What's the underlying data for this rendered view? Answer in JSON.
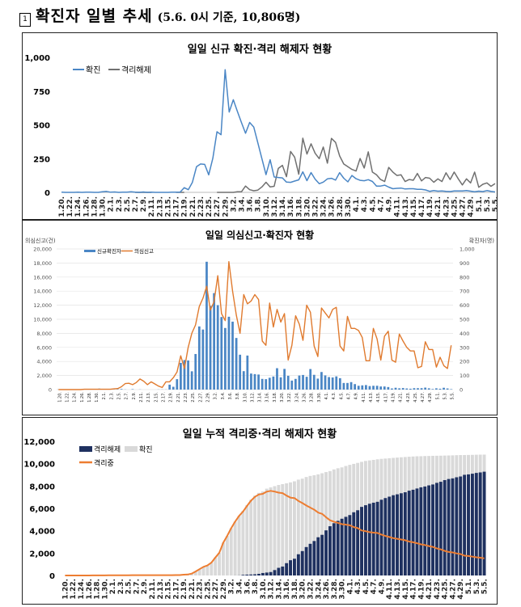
{
  "header": {
    "marker": "1",
    "title": "확진자 일별 추세",
    "subtitle": "(5.6. 0시 기준, 10,806명)"
  },
  "colors": {
    "confirmed_blue": "#4a86c5",
    "released_gray": "#707070",
    "reports_orange": "#e07a2e",
    "cum_released_navy": "#1f3160",
    "cum_confirmed_gray": "#d9d9d9",
    "isolating_orange": "#ed7d31"
  },
  "dates": [
    "1.20",
    "1.21",
    "1.22",
    "1.23",
    "1.24",
    "1.25",
    "1.26",
    "1.27",
    "1.28",
    "1.29",
    "1.30",
    "1.31",
    "2.1",
    "2.2",
    "2.3",
    "2.4",
    "2.5",
    "2.6",
    "2.7",
    "2.8",
    "2.9",
    "2.10",
    "2.11",
    "2.12",
    "2.13",
    "2.14",
    "2.15",
    "2.16",
    "2.17",
    "2.18",
    "2.19",
    "2.20",
    "2.21",
    "2.22",
    "2.23",
    "2.24",
    "2.25",
    "2.26",
    "2.27",
    "2.28",
    "2.29",
    "3.1",
    "3.2",
    "3.3",
    "3.4",
    "3.5",
    "3.6",
    "3.7",
    "3.8",
    "3.9",
    "3.10",
    "3.11",
    "3.12",
    "3.13",
    "3.14",
    "3.15",
    "3.16",
    "3.17",
    "3.18",
    "3.19",
    "3.20",
    "3.21",
    "3.22",
    "3.23",
    "3.24",
    "3.25",
    "3.26",
    "3.27",
    "3.28",
    "3.29",
    "3.30",
    "3.31",
    "4.1",
    "4.2",
    "4.3",
    "4.4",
    "4.5",
    "4.6",
    "4.7",
    "4.8",
    "4.9",
    "4.10",
    "4.11",
    "4.12",
    "4.13",
    "4.14",
    "4.15",
    "4.16",
    "4.17",
    "4.18",
    "4.19",
    "4.20",
    "4.21",
    "4.22",
    "4.23",
    "4.24",
    "4.25",
    "4.26",
    "4.27",
    "4.28",
    "4.29",
    "4.30",
    "5.1",
    "5.2",
    "5.3",
    "5.4",
    "5.5"
  ],
  "chart_data": [
    {
      "type": "line",
      "title": "일일 신규 확진·격리 해제자 현황",
      "ylim": [
        0,
        1000
      ],
      "yticks": [
        "0",
        "250",
        "500",
        "750",
        "1,000"
      ],
      "legend": "top-left",
      "grid": false,
      "series": [
        {
          "name": "확진",
          "values": [
            1,
            0,
            0,
            0,
            1,
            0,
            1,
            1,
            0,
            0,
            4,
            7,
            1,
            3,
            0,
            1,
            2,
            4,
            1,
            0,
            3,
            0,
            1,
            0,
            0,
            0,
            0,
            1,
            1,
            1,
            35,
            20,
            74,
            190,
            210,
            207,
            130,
            253,
            449,
            427,
            909,
            595,
            686,
            600,
            516,
            438,
            518,
            483,
            367,
            248,
            131,
            242,
            114,
            110,
            107,
            76,
            74,
            84,
            93,
            152,
            87,
            147,
            98,
            64,
            76,
            100,
            104,
            91,
            146,
            105,
            78,
            125,
            101,
            89,
            86,
            94,
            81,
            47,
            47,
            53,
            39,
            27,
            30,
            32,
            25,
            27,
            27,
            22,
            22,
            18,
            8,
            13,
            9,
            11,
            8,
            6,
            10,
            10,
            10,
            14,
            9,
            4,
            9,
            6,
            13,
            8,
            3
          ]
        },
        {
          "name": "격리해제",
          "values": [
            null,
            null,
            null,
            null,
            null,
            null,
            null,
            null,
            null,
            null,
            null,
            null,
            null,
            null,
            null,
            null,
            null,
            null,
            0,
            0,
            0,
            0,
            0,
            null,
            null,
            null,
            null,
            null,
            0,
            0,
            0,
            null,
            null,
            null,
            null,
            null,
            null,
            null,
            0,
            0,
            0,
            0,
            0,
            4,
            5,
            47,
            20,
            12,
            17,
            41,
            75,
            41,
            45,
            177,
            200,
            116,
            303,
            261,
            134,
            401,
            284,
            360,
            290,
            250,
            336,
            216,
            400,
            370,
            270,
            210,
            190,
            170,
            158,
            251,
            180,
            300,
            150,
            130,
            95,
            80,
            185,
            150,
            125,
            130,
            80,
            95,
            90,
            140,
            85,
            110,
            105,
            75,
            100,
            80,
            145,
            95,
            150,
            100,
            55,
            100,
            70,
            150,
            38,
            60,
            70,
            45,
            65
          ]
        }
      ]
    },
    {
      "type": "bar+line",
      "title": "일일 의심신고·확진자 현황",
      "ylabel_left": "의심신고(건)",
      "ylabel_right": "확진자(명)",
      "ylim_left": [
        0,
        20000
      ],
      "ylim_right": [
        0,
        1000
      ],
      "yticks_left": [
        "0",
        "2,000",
        "4,000",
        "6,000",
        "8,000",
        "10,000",
        "12,000",
        "14,000",
        "16,000",
        "18,000",
        "20,000"
      ],
      "yticks_right": [
        "0",
        "100",
        "200",
        "300",
        "400",
        "500",
        "600",
        "700",
        "800",
        "900",
        "1,000"
      ],
      "legend": "top-left",
      "grid": true,
      "series": [
        {
          "name": "신규확진자",
          "axis": "right",
          "type": "bar",
          "values_from": "chart_data.0.series.0.values"
        },
        {
          "name": "의심신고",
          "axis": "left",
          "type": "line",
          "values": [
            0,
            0,
            0,
            0,
            0,
            0,
            0,
            50,
            50,
            50,
            50,
            50,
            50,
            50,
            50,
            100,
            150,
            400,
            850,
            900,
            700,
            1000,
            1500,
            1200,
            700,
            1100,
            800,
            500,
            300,
            1100,
            1100,
            1700,
            2500,
            4800,
            3000,
            6000,
            8000,
            9200,
            11800,
            13000,
            14700,
            11300,
            12500,
            16200,
            10800,
            9800,
            18200,
            14000,
            10600,
            8000,
            13500,
            12200,
            12600,
            13500,
            12800,
            6900,
            6300,
            12300,
            8900,
            11400,
            9600,
            10800,
            4200,
            6300,
            10500,
            9300,
            7000,
            12000,
            11000,
            6200,
            4700,
            11600,
            10900,
            10200,
            11400,
            11700,
            6200,
            5500,
            10400,
            8700,
            8700,
            8400,
            7400,
            4100,
            4100,
            8700,
            7200,
            4200,
            7600,
            8300,
            4200,
            3900,
            7900,
            6900,
            6000,
            5500,
            5500,
            3100,
            3300,
            6800,
            5700,
            5700,
            3200,
            4600,
            3400,
            3000,
            6300
          ]
        }
      ]
    },
    {
      "type": "bar+line",
      "title": "일일 누적 격리중·격리 해제자 현황",
      "ylim": [
        0,
        12000
      ],
      "yticks": [
        "0",
        "2,000",
        "4,000",
        "6,000",
        "8,000",
        "10,000",
        "12,000"
      ],
      "legend": "top-left",
      "grid": false,
      "series": [
        {
          "name": "격리해제",
          "type": "bar",
          "cumulative_of": "chart_data.0.series.1.values"
        },
        {
          "name": "확진",
          "type": "bar",
          "cumulative_of": "chart_data.0.series.0.values"
        },
        {
          "name": "격리중",
          "type": "line"
        }
      ]
    }
  ]
}
